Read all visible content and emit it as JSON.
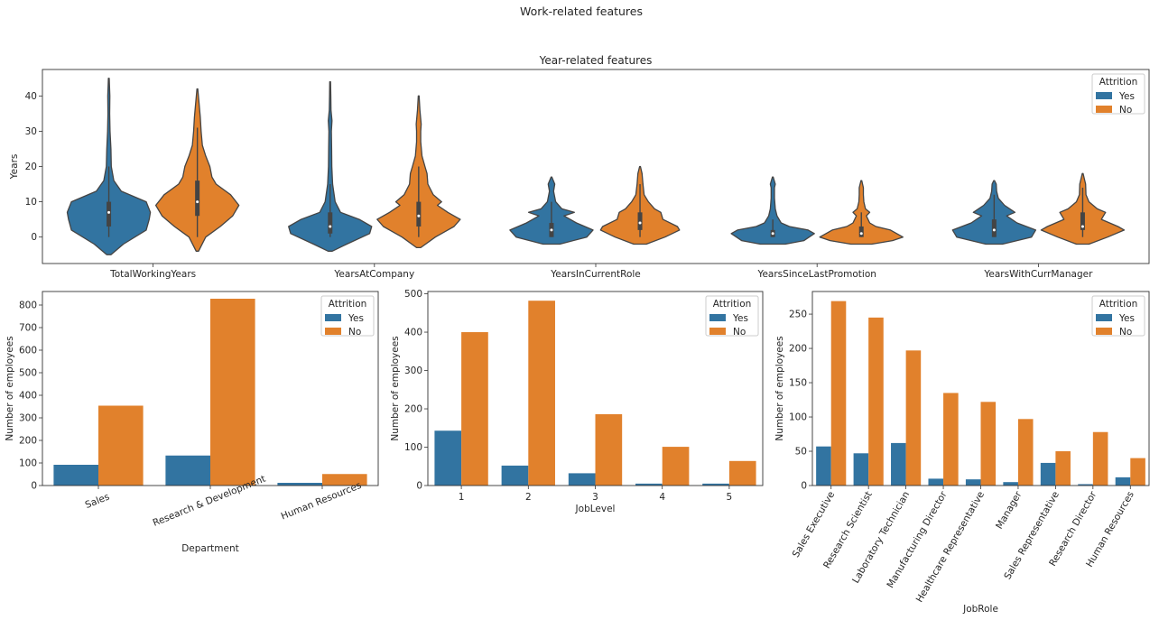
{
  "suptitle": "Work-related features",
  "colors": {
    "Yes": "#3274a1",
    "No": "#e1812c",
    "edge": "#444444"
  },
  "legend": {
    "title": "Attrition",
    "entries": [
      "Yes",
      "No"
    ]
  },
  "chart_data": [
    {
      "type": "violin",
      "title": "Year-related features",
      "xlabel": "",
      "ylabel": "Years",
      "ylim": [
        -7.5,
        47.5
      ],
      "yticks": [
        0,
        10,
        20,
        30,
        40
      ],
      "categories": [
        "TotalWorkingYears",
        "YearsAtCompany",
        "YearsInCurrentRole",
        "YearsSinceLastPromotion",
        "YearsWithCurrManager"
      ],
      "legend_position": "top-right",
      "series": [
        {
          "name": "Yes",
          "violins": [
            {
              "min": -5,
              "max": 45,
              "q1": 3,
              "median": 7,
              "q3": 10,
              "wlo": 0,
              "whi": 20,
              "profile": [
                [
                  -5,
                  0.05
                ],
                [
                  -2,
                  0.35
                ],
                [
                  2,
                  0.9
                ],
                [
                  5,
                  0.97
                ],
                [
                  7,
                  1.0
                ],
                [
                  10,
                  0.9
                ],
                [
                  13,
                  0.3
                ],
                [
                  16,
                  0.12
                ],
                [
                  20,
                  0.06
                ],
                [
                  25,
                  0.05
                ],
                [
                  30,
                  0.03
                ],
                [
                  35,
                  0.02
                ],
                [
                  40,
                  0.025
                ],
                [
                  45,
                  0.01
                ]
              ]
            },
            {
              "min": -4,
              "max": 44,
              "q1": 1,
              "median": 3,
              "q3": 7,
              "wlo": 0,
              "whi": 15,
              "profile": [
                [
                  -4,
                  0.05
                ],
                [
                  -2,
                  0.4
                ],
                [
                  1,
                  0.95
                ],
                [
                  3,
                  1.0
                ],
                [
                  5,
                  0.7
                ],
                [
                  7,
                  0.25
                ],
                [
                  10,
                  0.12
                ],
                [
                  15,
                  0.06
                ],
                [
                  20,
                  0.04
                ],
                [
                  25,
                  0.035
                ],
                [
                  30,
                  0.03
                ],
                [
                  33,
                  0.045
                ],
                [
                  36,
                  0.02
                ],
                [
                  40,
                  0.015
                ],
                [
                  44,
                  0.01
                ]
              ]
            },
            {
              "min": -2,
              "max": 17,
              "q1": 0,
              "median": 2,
              "q3": 4,
              "wlo": 0,
              "whi": 10,
              "profile": [
                [
                  -2,
                  0.2
                ],
                [
                  0,
                  0.85
                ],
                [
                  2,
                  1.0
                ],
                [
                  4,
                  0.6
                ],
                [
                  6,
                  0.3
                ],
                [
                  7,
                  0.55
                ],
                [
                  8,
                  0.25
                ],
                [
                  10,
                  0.1
                ],
                [
                  13,
                  0.05
                ],
                [
                  15,
                  0.08
                ],
                [
                  17,
                  0.01
                ]
              ]
            },
            {
              "min": -2,
              "max": 17,
              "q1": 0,
              "median": 1,
              "q3": 2,
              "wlo": 0,
              "whi": 5,
              "profile": [
                [
                  -2,
                  0.3
                ],
                [
                  -1,
                  0.75
                ],
                [
                  1,
                  1.0
                ],
                [
                  2,
                  0.85
                ],
                [
                  3,
                  0.4
                ],
                [
                  4,
                  0.2
                ],
                [
                  6,
                  0.1
                ],
                [
                  8,
                  0.06
                ],
                [
                  11,
                  0.04
                ],
                [
                  14,
                  0.04
                ],
                [
                  15,
                  0.06
                ],
                [
                  17,
                  0.01
                ]
              ]
            },
            {
              "min": -2,
              "max": 16,
              "q1": 0,
              "median": 2,
              "q3": 5,
              "wlo": 0,
              "whi": 12,
              "profile": [
                [
                  -2,
                  0.2
                ],
                [
                  0,
                  0.9
                ],
                [
                  2,
                  1.0
                ],
                [
                  4,
                  0.55
                ],
                [
                  6,
                  0.3
                ],
                [
                  7,
                  0.5
                ],
                [
                  9,
                  0.25
                ],
                [
                  11,
                  0.1
                ],
                [
                  13,
                  0.06
                ],
                [
                  15,
                  0.05
                ],
                [
                  16,
                  0.01
                ]
              ]
            }
          ]
        },
        {
          "name": "No",
          "violins": [
            {
              "min": -4,
              "max": 42,
              "q1": 6,
              "median": 10,
              "q3": 16,
              "wlo": 0,
              "whi": 31,
              "profile": [
                [
                  -4,
                  0.03
                ],
                [
                  0,
                  0.2
                ],
                [
                  3,
                  0.55
                ],
                [
                  6,
                  0.85
                ],
                [
                  9,
                  1.0
                ],
                [
                  12,
                  0.8
                ],
                [
                  15,
                  0.45
                ],
                [
                  17,
                  0.35
                ],
                [
                  20,
                  0.3
                ],
                [
                  23,
                  0.2
                ],
                [
                  26,
                  0.12
                ],
                [
                  30,
                  0.09
                ],
                [
                  34,
                  0.07
                ],
                [
                  38,
                  0.04
                ],
                [
                  42,
                  0.01
                ]
              ]
            },
            {
              "min": -3,
              "max": 40,
              "q1": 3,
              "median": 6,
              "q3": 10,
              "wlo": 0,
              "whi": 20,
              "profile": [
                [
                  -3,
                  0.05
                ],
                [
                  0,
                  0.4
                ],
                [
                  3,
                  0.85
                ],
                [
                  5,
                  1.0
                ],
                [
                  7,
                  0.7
                ],
                [
                  9,
                  0.45
                ],
                [
                  10,
                  0.55
                ],
                [
                  12,
                  0.35
                ],
                [
                  15,
                  0.22
                ],
                [
                  18,
                  0.2
                ],
                [
                  20,
                  0.15
                ],
                [
                  23,
                  0.08
                ],
                [
                  27,
                  0.05
                ],
                [
                  30,
                  0.05
                ],
                [
                  32,
                  0.06
                ],
                [
                  36,
                  0.03
                ],
                [
                  40,
                  0.01
                ]
              ]
            },
            {
              "min": -2,
              "max": 20,
              "q1": 2,
              "median": 4,
              "q3": 7,
              "wlo": 0,
              "whi": 15,
              "profile": [
                [
                  -2,
                  0.15
                ],
                [
                  0,
                  0.6
                ],
                [
                  2,
                  0.95
                ],
                [
                  3,
                  0.9
                ],
                [
                  5,
                  0.55
                ],
                [
                  7,
                  0.5
                ],
                [
                  8,
                  0.35
                ],
                [
                  10,
                  0.2
                ],
                [
                  12,
                  0.1
                ],
                [
                  15,
                  0.07
                ],
                [
                  18,
                  0.05
                ],
                [
                  20,
                  0.01
                ]
              ]
            },
            {
              "min": -2,
              "max": 16,
              "q1": 0,
              "median": 1,
              "q3": 3,
              "wlo": 0,
              "whi": 7,
              "profile": [
                [
                  -2,
                  0.25
                ],
                [
                  -1,
                  0.75
                ],
                [
                  0,
                  1.0
                ],
                [
                  2,
                  0.7
                ],
                [
                  3,
                  0.35
                ],
                [
                  4,
                  0.2
                ],
                [
                  6,
                  0.12
                ],
                [
                  7,
                  0.2
                ],
                [
                  8,
                  0.1
                ],
                [
                  10,
                  0.06
                ],
                [
                  12,
                  0.05
                ],
                [
                  14,
                  0.05
                ],
                [
                  16,
                  0.01
                ]
              ]
            },
            {
              "min": -2,
              "max": 18,
              "q1": 2,
              "median": 3,
              "q3": 7,
              "wlo": 0,
              "whi": 14,
              "profile": [
                [
                  -2,
                  0.15
                ],
                [
                  0,
                  0.6
                ],
                [
                  2,
                  1.0
                ],
                [
                  3,
                  0.85
                ],
                [
                  5,
                  0.45
                ],
                [
                  7,
                  0.55
                ],
                [
                  8,
                  0.35
                ],
                [
                  10,
                  0.15
                ],
                [
                  12,
                  0.08
                ],
                [
                  15,
                  0.07
                ],
                [
                  18,
                  0.01
                ]
              ]
            }
          ]
        }
      ]
    },
    {
      "type": "bar",
      "xlabel": "Department",
      "ylabel": "Number of employees",
      "ylim": [
        0,
        860
      ],
      "yticks": [
        0,
        100,
        200,
        300,
        400,
        500,
        600,
        700,
        800
      ],
      "categories": [
        "Sales",
        "Research & Development",
        "Human Resources"
      ],
      "tick_rotation": -22,
      "legend_position": "top-right",
      "series": [
        {
          "name": "Yes",
          "values": [
            92,
            133,
            12
          ]
        },
        {
          "name": "No",
          "values": [
            354,
            828,
            51
          ]
        }
      ]
    },
    {
      "type": "bar",
      "xlabel": "JobLevel",
      "ylabel": "Number of employees",
      "ylim": [
        0,
        506
      ],
      "yticks": [
        0,
        100,
        200,
        300,
        400,
        500
      ],
      "categories": [
        "1",
        "2",
        "3",
        "4",
        "5"
      ],
      "tick_rotation": 0,
      "legend_position": "top-right",
      "series": [
        {
          "name": "Yes",
          "values": [
            143,
            52,
            32,
            5,
            5
          ]
        },
        {
          "name": "No",
          "values": [
            400,
            482,
            186,
            101,
            64
          ]
        }
      ]
    },
    {
      "type": "bar",
      "xlabel": "JobRole",
      "ylabel": "Number of employees",
      "ylim": [
        0,
        283
      ],
      "yticks": [
        0,
        50,
        100,
        150,
        200,
        250
      ],
      "categories": [
        "Sales Executive",
        "Research Scientist",
        "Laboratory Technician",
        "Manufacturing Director",
        "Healthcare Representative",
        "Manager",
        "Sales Representative",
        "Research Director",
        "Human Resources"
      ],
      "tick_rotation": -60,
      "legend_position": "top-right",
      "series": [
        {
          "name": "Yes",
          "values": [
            57,
            47,
            62,
            10,
            9,
            5,
            33,
            2,
            12
          ]
        },
        {
          "name": "No",
          "values": [
            269,
            245,
            197,
            135,
            122,
            97,
            50,
            78,
            40
          ]
        }
      ]
    }
  ]
}
